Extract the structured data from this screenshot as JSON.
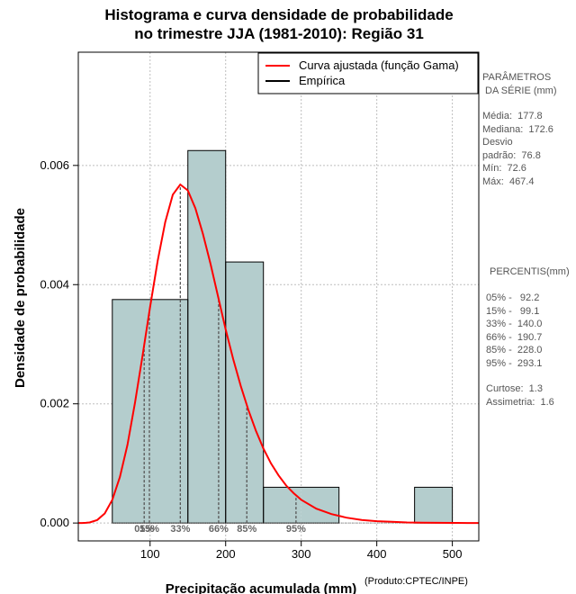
{
  "chart_data": {
    "type": "bar",
    "title_lines": [
      "Histograma e curva densidade de probabilidade",
      "no trimestre JJA (1981-2010): Região 31"
    ],
    "xlabel": "Precipitação acumulada (mm)",
    "ylabel": "Densidade de probabilidade",
    "xlim": [
      5,
      535
    ],
    "ylim": [
      -0.0003,
      0.0079
    ],
    "xticks": [
      100,
      200,
      300,
      400,
      500
    ],
    "yticks": [
      0.0,
      0.002,
      0.004,
      0.006
    ],
    "ytick_labels": [
      "0.000",
      "0.002",
      "0.004",
      "0.006"
    ],
    "grid": true,
    "bins": [
      {
        "start": 50,
        "end": 100,
        "density": 0.00375
      },
      {
        "start": 100,
        "end": 150,
        "density": 0.00375
      },
      {
        "start": 150,
        "end": 200,
        "density": 0.00625
      },
      {
        "start": 200,
        "end": 250,
        "density": 0.00438
      },
      {
        "start": 250,
        "end": 300,
        "density": 0.0006
      },
      {
        "start": 300,
        "end": 350,
        "density": 0.0006
      },
      {
        "start": 350,
        "end": 400,
        "density": 0
      },
      {
        "start": 400,
        "end": 450,
        "density": 0
      },
      {
        "start": 450,
        "end": 500,
        "density": 0.0006
      }
    ],
    "gamma_curve": {
      "x": [
        5,
        10,
        15,
        20,
        30,
        40,
        50,
        60,
        70,
        80,
        90,
        100,
        110,
        120,
        130,
        140,
        150,
        160,
        170,
        180,
        190,
        200,
        210,
        220,
        230,
        240,
        250,
        260,
        270,
        280,
        290,
        300,
        320,
        340,
        360,
        380,
        400,
        420,
        440,
        460,
        480,
        500,
        520,
        535
      ],
      "y": [
        0.0,
        1e-06,
        4e-06,
        1e-05,
        5e-05,
        0.00016,
        0.00039,
        0.00077,
        0.00131,
        0.00202,
        0.00281,
        0.00363,
        0.0044,
        0.00505,
        0.00551,
        0.00568,
        0.00558,
        0.00528,
        0.00485,
        0.00435,
        0.0038,
        0.00325,
        0.00275,
        0.0023,
        0.0019,
        0.00155,
        0.00125,
        0.001,
        0.0008,
        0.00063,
        0.0005,
        0.00039,
        0.00024,
        0.00015,
        9e-05,
        5e-05,
        3e-05,
        2e-05,
        1e-05,
        7e-06,
        4e-06,
        2e-06,
        1e-06,
        0.0
      ]
    },
    "percentile_lines": [
      {
        "label": "05%",
        "x": 92.2
      },
      {
        "label": "15%",
        "x": 99.1
      },
      {
        "label": "33%",
        "x": 140.0
      },
      {
        "label": "66%",
        "x": 190.7
      },
      {
        "label": "85%",
        "x": 228.0
      },
      {
        "label": "95%",
        "x": 293.1
      }
    ],
    "legend": {
      "position": "top-right",
      "entries": [
        {
          "label": "Curva ajustada (função Gama)",
          "color": "#ff0000"
        },
        {
          "label": "Empírica",
          "color": "#000000"
        }
      ]
    }
  },
  "colors": {
    "bar_fill": "#b4cdcd",
    "bar_stroke": "#000000",
    "curve": "#ff0000",
    "grid": "#bebebe",
    "percentile_line": "#555555",
    "side_text": "#555555"
  },
  "side_panel": {
    "params_title": "PARÂMETROS\n DA SÉRIE (mm)",
    "params": "Média:  177.8\nMediana:  172.6\nDesvio\npadrão:  76.8\nMín:  72.6\nMáx:  467.4",
    "percentis_title": "PERCENTIS(mm)",
    "percentis": "05% -   92.2\n15% -   99.1\n33% -  140.0\n66% -  190.7\n85% -  228.0\n95% -  293.1",
    "shape": "Curtose:  1.3\nAssimetria:  1.6"
  },
  "credit": "(Produto:CPTEC/INPE)"
}
